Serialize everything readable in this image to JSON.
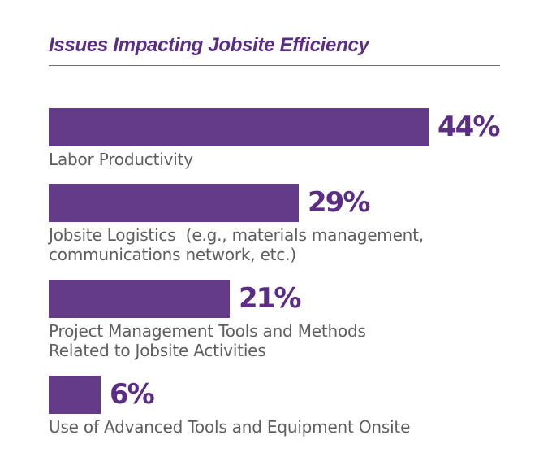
{
  "chart_data": {
    "type": "bar",
    "orientation": "horizontal",
    "title": "Issues Impacting Jobsite Efficiency",
    "xlabel": "",
    "ylabel": "",
    "xlim": [
      0,
      44
    ],
    "categories": [
      "Labor Productivity",
      "Jobsite Logistics  (e.g., materials management,\ncommunications network, etc.)",
      "Project Management Tools and Methods\nRelated to Jobsite Activities",
      "Use of Advanced Tools and Equipment Onsite"
    ],
    "values": [
      44,
      29,
      21,
      6
    ],
    "value_labels": [
      "44%",
      "29%",
      "21%",
      "6%"
    ]
  },
  "colors": {
    "bar": "#633b87",
    "value_text": "#5b2d87"
  }
}
